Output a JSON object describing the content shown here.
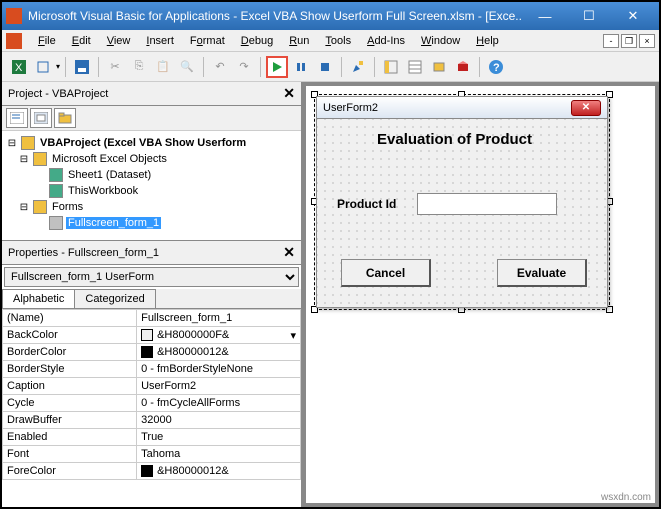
{
  "window": {
    "title": "Microsoft Visual Basic for Applications - Excel VBA Show Userform Full Screen.xlsm - [Exce...",
    "min": "—",
    "max": "☐",
    "close": "✕"
  },
  "menu": [
    "File",
    "Edit",
    "View",
    "Insert",
    "Format",
    "Debug",
    "Run",
    "Tools",
    "Add-Ins",
    "Window",
    "Help"
  ],
  "project_pane": {
    "title": "Project - VBAProject",
    "tree": {
      "root": "VBAProject (Excel VBA Show Userform",
      "group1": "Microsoft Excel Objects",
      "sheet1": "Sheet1 (Dataset)",
      "thiswb": "ThisWorkbook",
      "group2": "Forms",
      "form1": "Fullscreen_form_1"
    }
  },
  "props_pane": {
    "title": "Properties - Fullscreen_form_1",
    "object": "Fullscreen_form_1 UserForm",
    "tabs": {
      "a": "Alphabetic",
      "c": "Categorized"
    },
    "rows": [
      {
        "k": "(Name)",
        "v": "Fullscreen_form_1"
      },
      {
        "k": "BackColor",
        "v": "&H8000000F&",
        "swatch": "#f0f0f0",
        "dd": true
      },
      {
        "k": "BorderColor",
        "v": "&H80000012&",
        "swatch": "#000000"
      },
      {
        "k": "BorderStyle",
        "v": "0 - fmBorderStyleNone"
      },
      {
        "k": "Caption",
        "v": "UserForm2"
      },
      {
        "k": "Cycle",
        "v": "0 - fmCycleAllForms"
      },
      {
        "k": "DrawBuffer",
        "v": "32000"
      },
      {
        "k": "Enabled",
        "v": "True"
      },
      {
        "k": "Font",
        "v": "Tahoma"
      },
      {
        "k": "ForeColor",
        "v": "&H80000012&",
        "swatch": "#000000"
      }
    ]
  },
  "userform": {
    "caption": "UserForm2",
    "heading": "Evaluation of Product",
    "label": "Product Id",
    "btn_cancel": "Cancel",
    "btn_eval": "Evaluate"
  },
  "watermark": "wsxdn.com"
}
